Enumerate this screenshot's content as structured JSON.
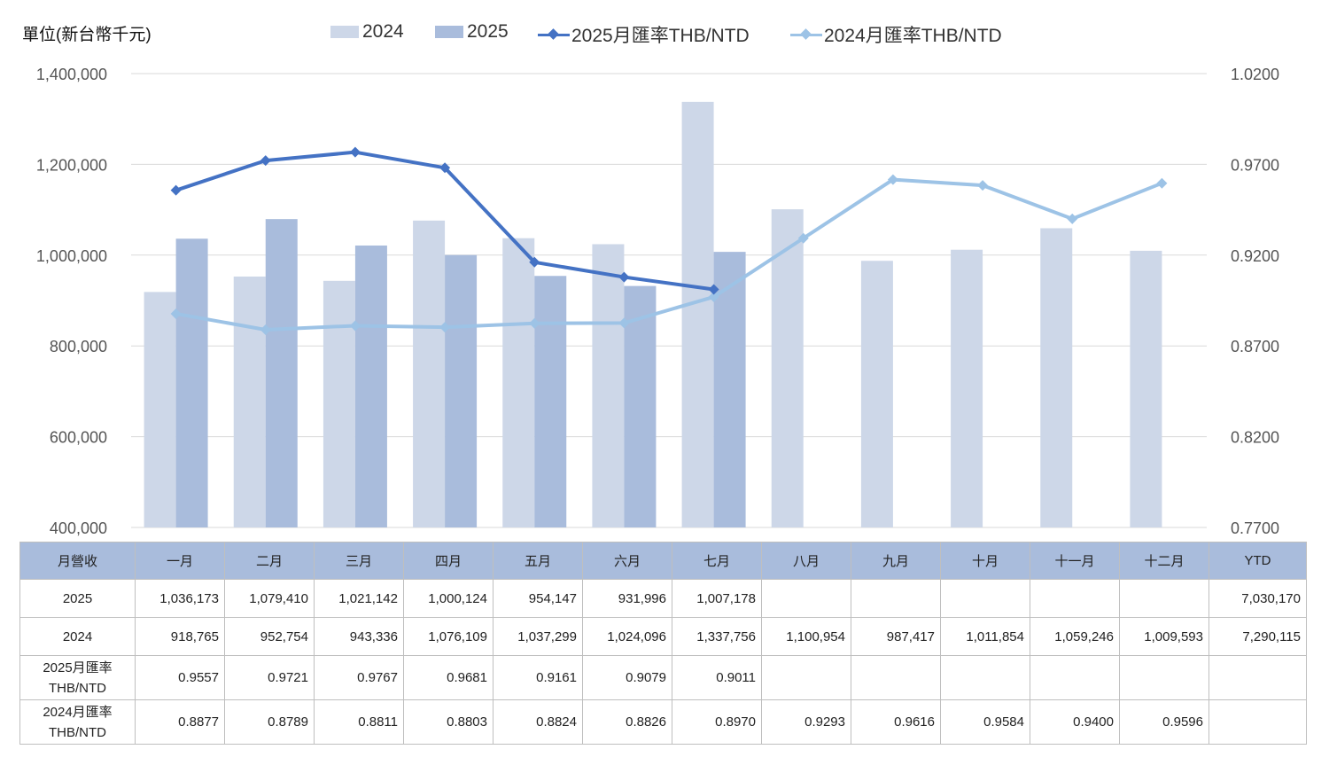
{
  "unit_label": "單位(新台幣千元)",
  "legend": [
    {
      "label": "2024",
      "kind": "bar",
      "color": "#cdd7e8"
    },
    {
      "label": "2025",
      "kind": "bar",
      "color": "#a9bcdc"
    },
    {
      "label": "2025月匯率THB/NTD",
      "kind": "line",
      "color": "#4472c4"
    },
    {
      "label": "2024月匯率THB/NTD",
      "kind": "line",
      "color": "#9dc3e6"
    }
  ],
  "table": {
    "header": [
      "月營收",
      "一月",
      "二月",
      "三月",
      "四月",
      "五月",
      "六月",
      "七月",
      "八月",
      "九月",
      "十月",
      "十一月",
      "十二月",
      "YTD"
    ],
    "rows": [
      {
        "label": "2025",
        "cells": [
          "1,036,173",
          "1,079,410",
          "1,021,142",
          "1,000,124",
          "954,147",
          "931,996",
          "1,007,178",
          "",
          "",
          "",
          "",
          "",
          "7,030,170"
        ]
      },
      {
        "label": "2024",
        "cells": [
          "918,765",
          "952,754",
          "943,336",
          "1,076,109",
          "1,037,299",
          "1,024,096",
          "1,337,756",
          "1,100,954",
          "987,417",
          "1,011,854",
          "1,059,246",
          "1,009,593",
          "7,290,115"
        ]
      },
      {
        "label": "2025月匯率THB/NTD",
        "cells": [
          "0.9557",
          "0.9721",
          "0.9767",
          "0.9681",
          "0.9161",
          "0.9079",
          "0.9011",
          "",
          "",
          "",
          "",
          "",
          ""
        ]
      },
      {
        "label": "2024月匯率THB/NTD",
        "cells": [
          "0.8877",
          "0.8789",
          "0.8811",
          "0.8803",
          "0.8824",
          "0.8826",
          "0.8970",
          "0.9293",
          "0.9616",
          "0.9584",
          "0.9400",
          "0.9596",
          ""
        ]
      }
    ]
  },
  "chart_data": {
    "type": "bar",
    "categories": [
      "一月",
      "二月",
      "三月",
      "四月",
      "五月",
      "六月",
      "七月",
      "八月",
      "九月",
      "十月",
      "十一月",
      "十二月"
    ],
    "series": [
      {
        "name": "2024",
        "type": "bar",
        "axis": "left",
        "color": "#cdd7e8",
        "values": [
          918765,
          952754,
          943336,
          1076109,
          1037299,
          1024096,
          1337756,
          1100954,
          987417,
          1011854,
          1059246,
          1009593
        ]
      },
      {
        "name": "2025",
        "type": "bar",
        "axis": "left",
        "color": "#a9bcdc",
        "values": [
          1036173,
          1079410,
          1021142,
          1000124,
          954147,
          931996,
          1007178,
          null,
          null,
          null,
          null,
          null
        ]
      },
      {
        "name": "2025月匯率THB/NTD",
        "type": "line",
        "axis": "right",
        "color": "#4472c4",
        "values": [
          0.9557,
          0.9721,
          0.9767,
          0.9681,
          0.9161,
          0.9079,
          0.9011,
          null,
          null,
          null,
          null,
          null
        ]
      },
      {
        "name": "2024月匯率THB/NTD",
        "type": "line",
        "axis": "right",
        "color": "#9dc3e6",
        "values": [
          0.8877,
          0.8789,
          0.8811,
          0.8803,
          0.8824,
          0.8826,
          0.897,
          0.9293,
          0.9616,
          0.9584,
          0.94,
          0.9596
        ]
      }
    ],
    "y_left": {
      "min": 400000,
      "max": 1400000,
      "ticks": [
        "400,000",
        "600,000",
        "800,000",
        "1,000,000",
        "1,200,000",
        "1,400,000"
      ]
    },
    "y_right": {
      "min": 0.77,
      "max": 1.02,
      "ticks": [
        "0.7700",
        "0.8200",
        "0.8700",
        "0.9200",
        "0.9700",
        "1.0200"
      ]
    },
    "grid": true,
    "legend_position": "top"
  }
}
